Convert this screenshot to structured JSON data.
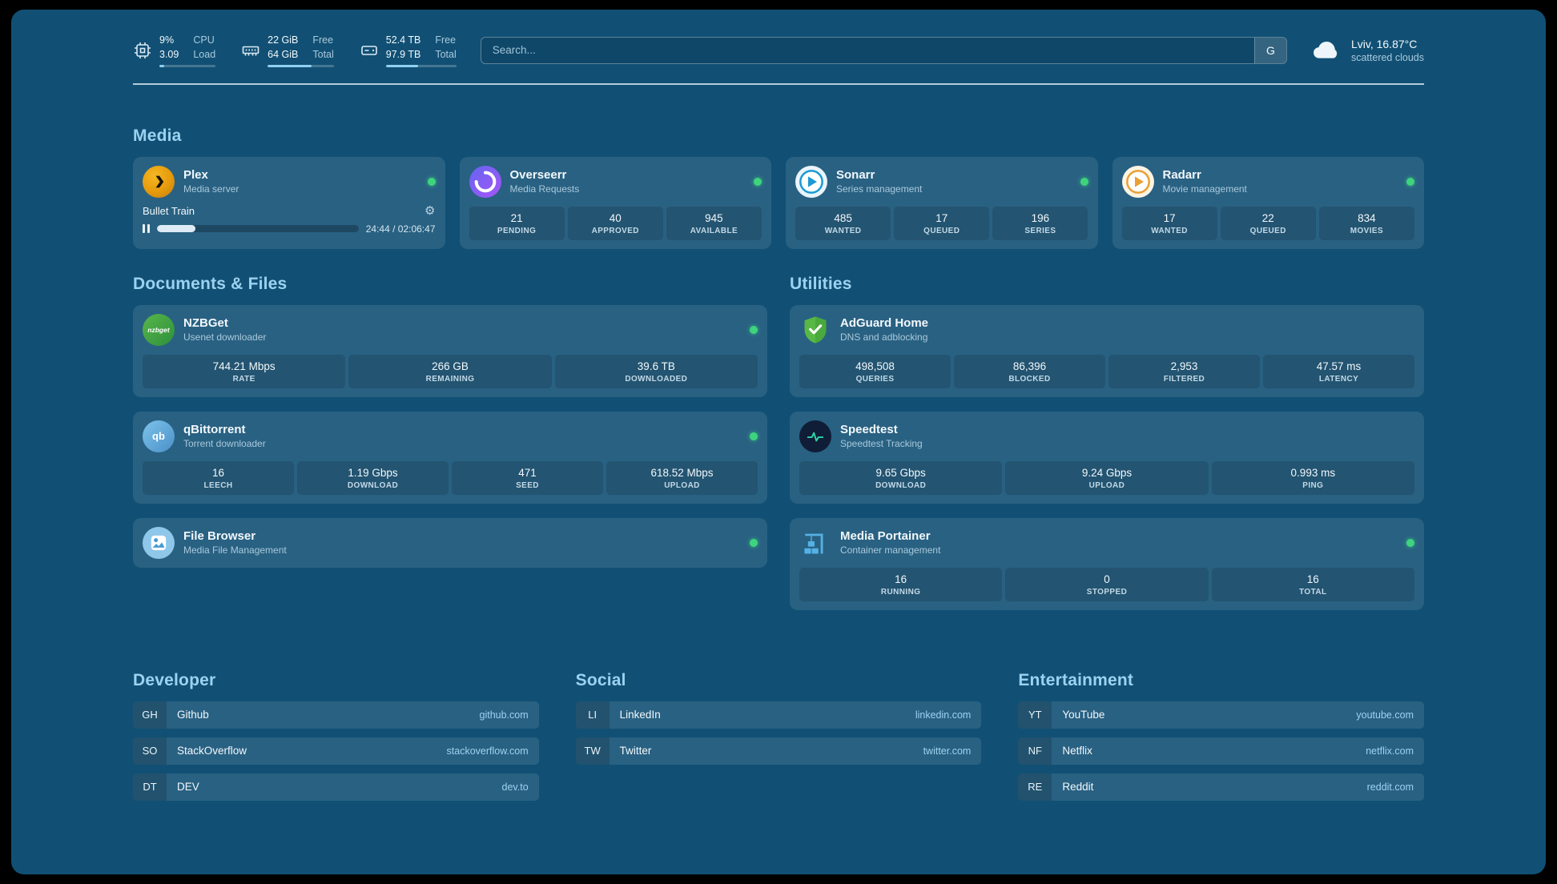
{
  "theme": {
    "background": "#115074",
    "heading_color": "#9cd2f1",
    "status_green": "#3ed47e",
    "link_blue": "#9ed2f0"
  },
  "topbar": {
    "resources": [
      {
        "icon": "cpu-icon",
        "rows": [
          {
            "value": "9%",
            "label": "CPU"
          },
          {
            "value": "3.09",
            "label": "Load"
          }
        ],
        "progress_percent": 9
      },
      {
        "icon": "memory-icon",
        "rows": [
          {
            "value": "22 GiB",
            "label": "Free"
          },
          {
            "value": "64 GiB",
            "label": "Total"
          }
        ],
        "progress_percent": 66
      },
      {
        "icon": "disk-icon",
        "rows": [
          {
            "value": "52.4 TB",
            "label": "Free"
          },
          {
            "value": "97.9 TB",
            "label": "Total"
          }
        ],
        "progress_percent": 46
      }
    ],
    "search": {
      "placeholder": "Search...",
      "provider_label": "G"
    },
    "weather": {
      "location": "Lviv, 16.87°C",
      "condition": "scattered clouds"
    }
  },
  "sections": {
    "media": {
      "title": "Media",
      "services": [
        {
          "name": "Plex",
          "desc": "Media server",
          "now_playing": {
            "title": "Bullet Train",
            "time": "24:44 / 02:06:47",
            "progress_percent": 19
          }
        },
        {
          "name": "Overseerr",
          "desc": "Media Requests",
          "stats": [
            {
              "value": "21",
              "label": "PENDING"
            },
            {
              "value": "40",
              "label": "APPROVED"
            },
            {
              "value": "945",
              "label": "AVAILABLE"
            }
          ]
        },
        {
          "name": "Sonarr",
          "desc": "Series management",
          "stats": [
            {
              "value": "485",
              "label": "WANTED"
            },
            {
              "value": "17",
              "label": "QUEUED"
            },
            {
              "value": "196",
              "label": "SERIES"
            }
          ]
        },
        {
          "name": "Radarr",
          "desc": "Movie management",
          "stats": [
            {
              "value": "17",
              "label": "WANTED"
            },
            {
              "value": "22",
              "label": "QUEUED"
            },
            {
              "value": "834",
              "label": "MOVIES"
            }
          ]
        }
      ]
    },
    "documents": {
      "title": "Documents & Files",
      "services": [
        {
          "name": "NZBGet",
          "desc": "Usenet downloader",
          "stats": [
            {
              "value": "744.21 Mbps",
              "label": "RATE"
            },
            {
              "value": "266 GB",
              "label": "REMAINING"
            },
            {
              "value": "39.6 TB",
              "label": "DOWNLOADED"
            }
          ]
        },
        {
          "name": "qBittorrent",
          "desc": "Torrent downloader",
          "stats": [
            {
              "value": "16",
              "label": "LEECH"
            },
            {
              "value": "1.19 Gbps",
              "label": "DOWNLOAD"
            },
            {
              "value": "471",
              "label": "SEED"
            },
            {
              "value": "618.52 Mbps",
              "label": "UPLOAD"
            }
          ]
        },
        {
          "name": "File Browser",
          "desc": "Media File Management",
          "stats": []
        }
      ]
    },
    "utilities": {
      "title": "Utilities",
      "services": [
        {
          "name": "AdGuard Home",
          "desc": "DNS and adblocking",
          "stats": [
            {
              "value": "498,508",
              "label": "QUERIES"
            },
            {
              "value": "86,396",
              "label": "BLOCKED"
            },
            {
              "value": "2,953",
              "label": "FILTERED"
            },
            {
              "value": "47.57 ms",
              "label": "LATENCY"
            }
          ]
        },
        {
          "name": "Speedtest",
          "desc": "Speedtest Tracking",
          "stats": [
            {
              "value": "9.65 Gbps",
              "label": "DOWNLOAD"
            },
            {
              "value": "9.24 Gbps",
              "label": "UPLOAD"
            },
            {
              "value": "0.993 ms",
              "label": "PING"
            }
          ]
        },
        {
          "name": "Media Portainer",
          "desc": "Container management",
          "stats": [
            {
              "value": "16",
              "label": "RUNNING"
            },
            {
              "value": "0",
              "label": "STOPPED"
            },
            {
              "value": "16",
              "label": "TOTAL"
            }
          ]
        }
      ]
    }
  },
  "bookmarks": [
    {
      "title": "Developer",
      "items": [
        {
          "abbr": "GH",
          "name": "Github",
          "url": "github.com"
        },
        {
          "abbr": "SO",
          "name": "StackOverflow",
          "url": "stackoverflow.com"
        },
        {
          "abbr": "DT",
          "name": "DEV",
          "url": "dev.to"
        }
      ]
    },
    {
      "title": "Social",
      "items": [
        {
          "abbr": "LI",
          "name": "LinkedIn",
          "url": "linkedin.com"
        },
        {
          "abbr": "TW",
          "name": "Twitter",
          "url": "twitter.com"
        }
      ]
    },
    {
      "title": "Entertainment",
      "items": [
        {
          "abbr": "YT",
          "name": "YouTube",
          "url": "youtube.com"
        },
        {
          "abbr": "NF",
          "name": "Netflix",
          "url": "netflix.com"
        },
        {
          "abbr": "RE",
          "name": "Reddit",
          "url": "reddit.com"
        }
      ]
    }
  ]
}
